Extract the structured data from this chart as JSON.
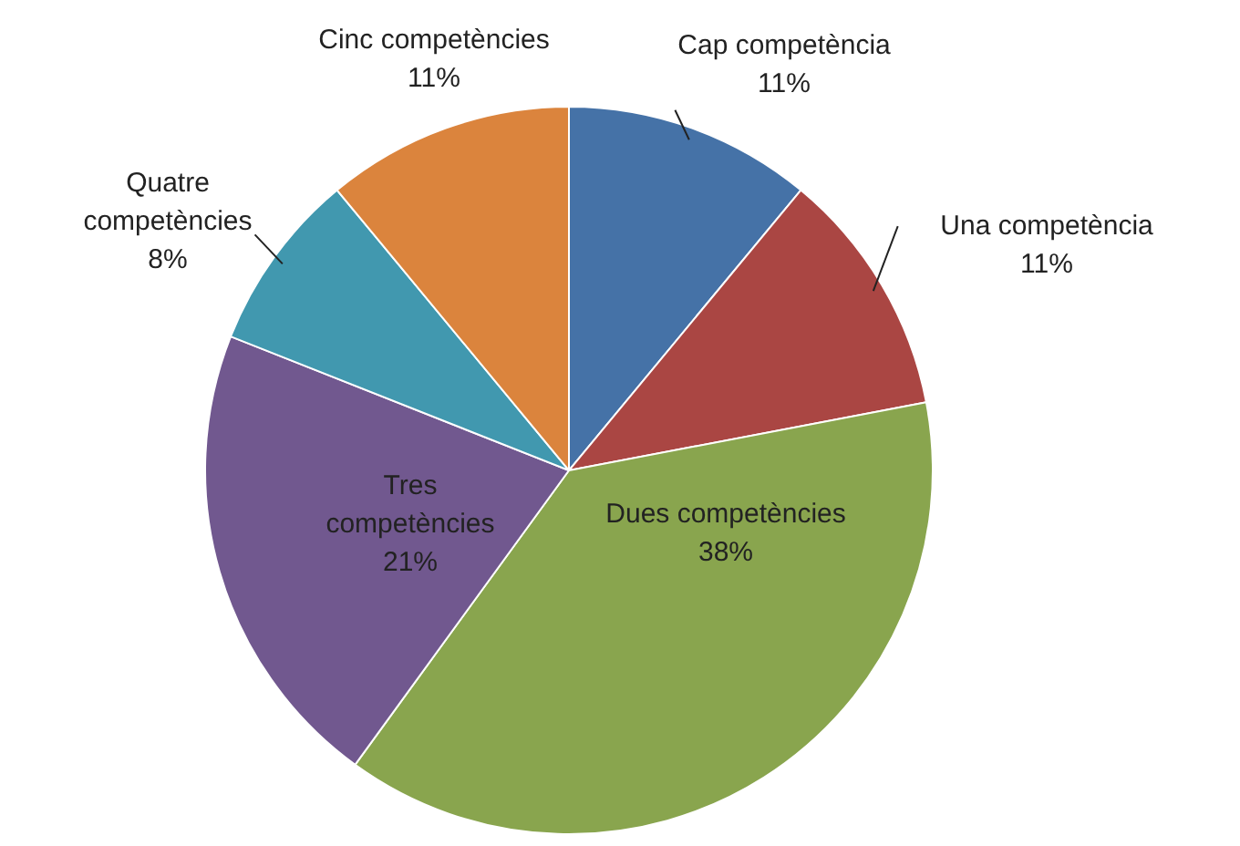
{
  "chart_data": {
    "type": "pie",
    "categories": [
      "Cap competència",
      "Una competència",
      "Dues competències",
      "Tres competències",
      "Quatre competències",
      "Cinc competències"
    ],
    "values": [
      11,
      11,
      38,
      21,
      8,
      11
    ],
    "colors": [
      "#4572a7",
      "#aa4643",
      "#89a54e",
      "#71588f",
      "#4198af",
      "#db843d"
    ],
    "value_labels": [
      "11%",
      "11%",
      "38%",
      "21%",
      "8%",
      "11%"
    ],
    "legend": false
  }
}
